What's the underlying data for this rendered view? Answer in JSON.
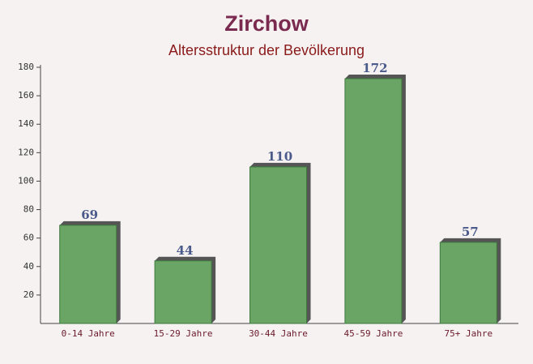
{
  "chart_data": {
    "type": "bar",
    "title": "Zirchow",
    "subtitle": "Altersstruktur der Bevölkerung",
    "categories": [
      "0-14 Jahre",
      "15-29 Jahre",
      "30-44 Jahre",
      "45-59 Jahre",
      "75+ Jahre"
    ],
    "values": [
      69,
      44,
      110,
      172,
      57
    ],
    "color": "#6aa565",
    "ylim": [
      0,
      180
    ],
    "yticks": [
      20,
      40,
      60,
      80,
      100,
      120,
      140,
      160,
      180
    ],
    "grid": false
  }
}
